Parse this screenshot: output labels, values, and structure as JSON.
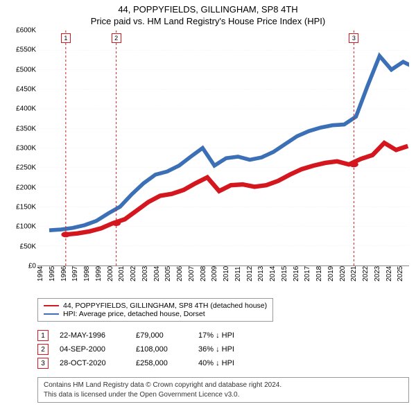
{
  "title_line1": "44, POPPYFIELDS, GILLINGHAM, SP8 4TH",
  "title_line2": "Price paid vs. HM Land Registry's House Price Index (HPI)",
  "chart": {
    "type": "line",
    "background_color": "#ffffff",
    "grid_color": "#dddddd",
    "x_years": [
      1994,
      1995,
      1996,
      1997,
      1998,
      1999,
      2000,
      2001,
      2002,
      2003,
      2004,
      2005,
      2006,
      2007,
      2008,
      2009,
      2010,
      2011,
      2012,
      2013,
      2014,
      2015,
      2016,
      2017,
      2018,
      2019,
      2020,
      2021,
      2022,
      2023,
      2024,
      2025
    ],
    "xlim": [
      1994,
      2025.5
    ],
    "ylim": [
      0,
      600000
    ],
    "ytick_step": 50000,
    "ytick_labels": [
      "£0",
      "£50K",
      "£100K",
      "£150K",
      "£200K",
      "£250K",
      "£300K",
      "£350K",
      "£400K",
      "£450K",
      "£500K",
      "£550K",
      "£600K"
    ],
    "xlabel_fontsize": 10,
    "ylabel_fontsize": 10,
    "series": [
      {
        "name": "hpi",
        "label": "HPI: Average price, detached house, Dorset",
        "color": "#3b6fb6",
        "line_width": 1.4,
        "start_year": 1995,
        "values_yearly": [
          90000,
          92000,
          96000,
          103000,
          114000,
          133000,
          150000,
          182000,
          210000,
          232000,
          240000,
          255000,
          278000,
          300000,
          255000,
          274000,
          278000,
          270000,
          276000,
          290000,
          310000,
          330000,
          343000,
          352000,
          358000,
          360000,
          380000,
          460000,
          535000,
          500000,
          520000,
          505000
        ]
      },
      {
        "name": "property",
        "label": "44, POPPYFIELDS, GILLINGHAM, SP8 4TH (detached house)",
        "color": "#d4171e",
        "line_width": 1.6,
        "start_year": 1996.4,
        "values_yearly": [
          79000,
          82000,
          87000,
          95000,
          108000,
          118000,
          140000,
          162000,
          178000,
          183000,
          193000,
          210000,
          225000,
          190000,
          205000,
          207000,
          201000,
          205000,
          216000,
          232000,
          246000,
          255000,
          262000,
          266000,
          258000,
          272000,
          282000,
          313000,
          295000,
          305000
        ]
      }
    ],
    "events": [
      {
        "n": "1",
        "year": 1996.4,
        "price": 79000,
        "date": "22-MAY-1996",
        "pct": "17% ↓ HPI",
        "badge_color": "#d4171e"
      },
      {
        "n": "2",
        "year": 2000.68,
        "price": 108000,
        "date": "04-SEP-2000",
        "pct": "36% ↓ HPI",
        "badge_color": "#d4171e"
      },
      {
        "n": "3",
        "year": 2020.82,
        "price": 258000,
        "date": "28-OCT-2020",
        "pct": "40% ↓ HPI",
        "badge_color": "#d4171e"
      }
    ],
    "event_marker": {
      "shape": "circle",
      "radius": 4,
      "fill": "#d4171e"
    },
    "event_guide": {
      "stroke": "#d4171e",
      "dasharray": "3,3",
      "width": 1
    }
  },
  "legend": {
    "items": [
      {
        "color": "#d4171e",
        "label": "44, POPPYFIELDS, GILLINGHAM, SP8 4TH (detached house)"
      },
      {
        "color": "#3b6fb6",
        "label": "HPI: Average price, detached house, Dorset"
      }
    ]
  },
  "transactions_price_labels": [
    "£79,000",
    "£108,000",
    "£258,000"
  ],
  "footer": {
    "line1": "Contains HM Land Registry data © Crown copyright and database right 2024.",
    "line2": "This data is licensed under the Open Government Licence v3.0."
  }
}
